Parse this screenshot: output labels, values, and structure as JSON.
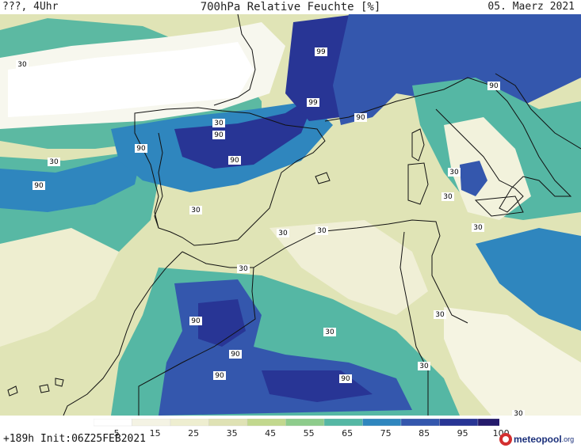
{
  "header": {
    "left": "???, 4Uhr",
    "title": "700hPa Relative Feuchte [%]",
    "date": "05. Maerz 2021"
  },
  "footer": {
    "run": "+189h Init:06Z25FEB2021",
    "brand": "meteopool",
    "brand_suffix": ".org"
  },
  "colorbar": {
    "ticks": [
      "5",
      "15",
      "25",
      "35",
      "45",
      "55",
      "65",
      "75",
      "85",
      "95",
      "100"
    ],
    "colors": [
      "#ffffff",
      "#f4f3e4",
      "#eeeed0",
      "#dfe2b4",
      "#c2d88e",
      "#8ecc8c",
      "#55b7a4",
      "#2f86be",
      "#3457ad",
      "#283595",
      "#241a6b"
    ]
  },
  "map_labels": [
    {
      "value": "30"
    },
    {
      "value": "99"
    },
    {
      "value": "99"
    },
    {
      "value": "90"
    },
    {
      "value": "30"
    },
    {
      "value": "90"
    },
    {
      "value": "90"
    },
    {
      "value": "90"
    },
    {
      "value": "90"
    },
    {
      "value": "30"
    },
    {
      "value": "90"
    },
    {
      "value": "30"
    },
    {
      "value": "30"
    },
    {
      "value": "30"
    },
    {
      "value": "30"
    },
    {
      "value": "30"
    },
    {
      "value": "30"
    },
    {
      "value": "30"
    },
    {
      "value": "90"
    },
    {
      "value": "90"
    },
    {
      "value": "30"
    },
    {
      "value": "90"
    },
    {
      "value": "90"
    },
    {
      "value": "30"
    },
    {
      "value": "30"
    },
    {
      "value": "30"
    }
  ]
}
